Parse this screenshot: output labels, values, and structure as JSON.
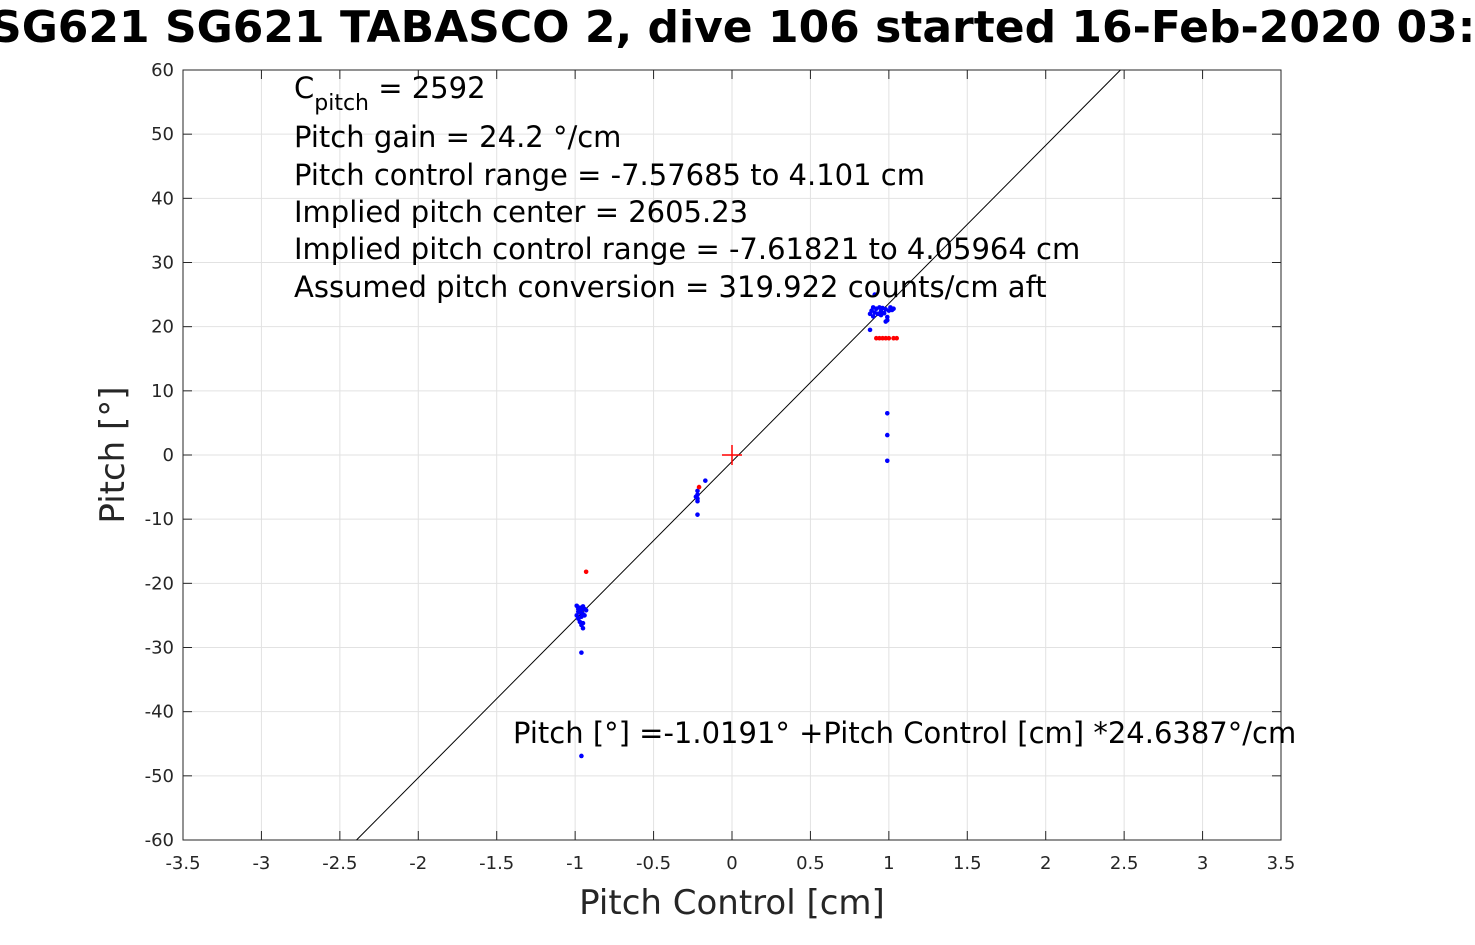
{
  "chart_data": {
    "type": "scatter",
    "title": "SG621 SG621 TABASCO 2, dive 106 started 16-Feb-2020 03:",
    "xlabel": "Pitch Control [cm]",
    "ylabel": "Pitch [°]",
    "xlim": [
      -3.5,
      3.5
    ],
    "ylim": [
      -60,
      60
    ],
    "x_ticks": [
      "-3.5",
      "-3",
      "-2.5",
      "-2",
      "-1.5",
      "-1",
      "-0.5",
      "0",
      "0.5",
      "1",
      "1.5",
      "2",
      "2.5",
      "3",
      "3.5"
    ],
    "y_ticks": [
      "60",
      "50",
      "40",
      "30",
      "20",
      "10",
      "0",
      "-10",
      "-20",
      "-30",
      "-40",
      "-50",
      "-60"
    ],
    "grid": true,
    "colors": {
      "series_blue": "#0000ff",
      "series_red": "#ff0000",
      "fit_line": "#000000"
    },
    "annotations": {
      "cpitch_base": "C",
      "cpitch_sub": "pitch",
      "cpitch_value": " = 2592",
      "pitch_gain": "Pitch gain = 24.2 °/cm",
      "control_range": "Pitch control range = -7.57685 to 4.101 cm",
      "implied_center": "Implied pitch center = 2605.23",
      "implied_range": "Implied pitch control range = -7.61821 to 4.05964 cm",
      "conversion": "Assumed pitch conversion = 319.922 counts/cm aft",
      "fit_equation": "Pitch [°] =-1.0191° +Pitch Control [cm] *24.6387°/cm"
    },
    "fit": {
      "intercept": -1.0191,
      "slope": 24.6387
    },
    "center_marker": {
      "x": 0,
      "y": 0,
      "color": "#ff0000",
      "symbol": "+"
    },
    "series": [
      {
        "color": "#0000ff",
        "points": [
          [
            -0.99,
            -23.5
          ],
          [
            -0.98,
            -24.0
          ],
          [
            -0.97,
            -24.5
          ],
          [
            -0.99,
            -25.0
          ],
          [
            -0.98,
            -25.5
          ],
          [
            -0.97,
            -23.8
          ],
          [
            -0.96,
            -24.2
          ],
          [
            -0.95,
            -24.8
          ],
          [
            -0.96,
            -25.2
          ],
          [
            -0.95,
            -23.6
          ],
          [
            -0.97,
            -26.0
          ],
          [
            -0.96,
            -26.5
          ],
          [
            -0.95,
            -27.0
          ],
          [
            -0.98,
            -24.4
          ],
          [
            -0.94,
            -24.0
          ],
          [
            -0.94,
            -25.0
          ],
          [
            -0.93,
            -24.2
          ],
          [
            -0.95,
            -26.2
          ],
          [
            -0.96,
            -30.8
          ],
          [
            -0.96,
            -46.9
          ],
          [
            -0.22,
            -5.6
          ],
          [
            -0.22,
            -6.2
          ],
          [
            -0.22,
            -6.8
          ],
          [
            -0.22,
            -7.2
          ],
          [
            -0.23,
            -6.5
          ],
          [
            -0.22,
            -9.3
          ],
          [
            -0.17,
            -4.0
          ],
          [
            0.88,
            22.0
          ],
          [
            0.89,
            22.5
          ],
          [
            0.9,
            23.0
          ],
          [
            0.91,
            22.2
          ],
          [
            0.92,
            22.8
          ],
          [
            0.93,
            22.0
          ],
          [
            0.94,
            23.0
          ],
          [
            0.95,
            22.4
          ],
          [
            0.96,
            22.9
          ],
          [
            0.97,
            22.1
          ],
          [
            0.98,
            22.7
          ],
          [
            0.99,
            21.5
          ],
          [
            0.99,
            21.0
          ],
          [
            1.0,
            22.5
          ],
          [
            1.01,
            23.0
          ],
          [
            1.02,
            22.6
          ],
          [
            1.03,
            22.8
          ],
          [
            0.9,
            21.6
          ],
          [
            0.95,
            21.8
          ],
          [
            0.98,
            20.8
          ],
          [
            0.88,
            19.5
          ],
          [
            0.91,
            25.0
          ],
          [
            0.99,
            6.5
          ],
          [
            0.99,
            3.1
          ],
          [
            0.99,
            -0.9
          ]
        ]
      },
      {
        "color": "#ff0000",
        "points": [
          [
            -0.93,
            -18.2
          ],
          [
            -0.21,
            -5.0
          ],
          [
            0.92,
            18.2
          ],
          [
            0.94,
            18.2
          ],
          [
            0.96,
            18.2
          ],
          [
            0.98,
            18.2
          ],
          [
            1.0,
            18.2
          ],
          [
            1.03,
            18.2
          ],
          [
            1.05,
            18.2
          ]
        ]
      }
    ]
  }
}
